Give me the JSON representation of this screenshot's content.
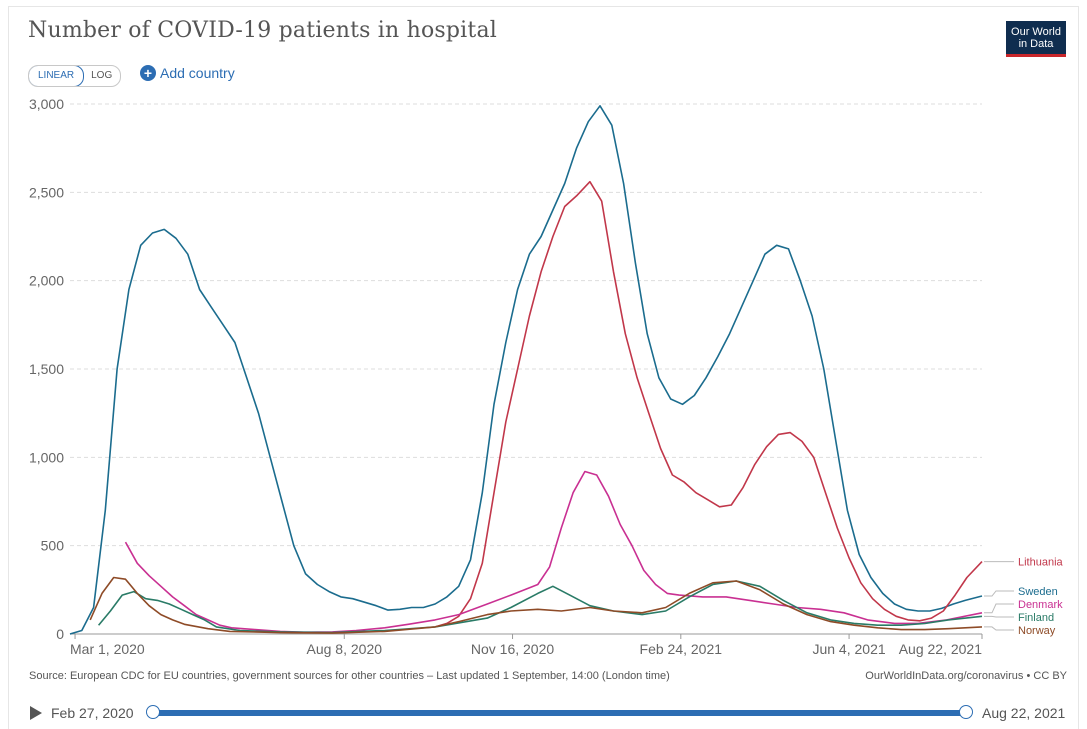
{
  "header": {
    "title": "Number of COVID-19 patients in hospital",
    "logo_line1": "Our World",
    "logo_line2": "in Data"
  },
  "controls": {
    "linear_label": "LINEAR",
    "log_label": "LOG",
    "add_country_label": "Add country",
    "add_icon": "plus-circle-icon"
  },
  "footer": {
    "source": "Source: European CDC for EU countries, government sources for other countries – Last updated 1 September, 14:00 (London time)",
    "credit": "OurWorldInData.org/coronavirus • CC BY"
  },
  "timeline": {
    "start_label": "Feb 27, 2020",
    "end_label": "Aug 22, 2021",
    "play_icon": "play-icon"
  },
  "chart_data": {
    "type": "line",
    "title": "Number of COVID-19 patients in hospital",
    "x_axis": {
      "type": "date",
      "range": [
        "2020-02-27",
        "2021-08-22"
      ],
      "ticks": [
        {
          "date": "2020-03-01",
          "label": "Mar 1, 2020"
        },
        {
          "date": "2020-08-08",
          "label": "Aug 8, 2020"
        },
        {
          "date": "2020-11-16",
          "label": "Nov 16, 2020"
        },
        {
          "date": "2021-02-24",
          "label": "Feb 24, 2021"
        },
        {
          "date": "2021-06-04",
          "label": "Jun 4, 2021"
        },
        {
          "date": "2021-08-22",
          "label": "Aug 22, 2021"
        }
      ]
    },
    "y_axis": {
      "range": [
        0,
        3000
      ],
      "ticks": [
        {
          "value": 0,
          "label": "0"
        },
        {
          "value": 500,
          "label": "500"
        },
        {
          "value": 1000,
          "label": "1,000"
        },
        {
          "value": 1500,
          "label": "1,500"
        },
        {
          "value": 2000,
          "label": "2,000"
        },
        {
          "value": 2500,
          "label": "2,500"
        },
        {
          "value": 3000,
          "label": "3,000"
        }
      ],
      "grid": true
    },
    "legend": "right-end-labels",
    "series": [
      {
        "name": "Sweden",
        "color": "#1b6c8e",
        "points": [
          [
            "2020-02-27",
            0
          ],
          [
            "2020-03-05",
            20
          ],
          [
            "2020-03-12",
            150
          ],
          [
            "2020-03-19",
            700
          ],
          [
            "2020-03-26",
            1500
          ],
          [
            "2020-04-02",
            1950
          ],
          [
            "2020-04-09",
            2200
          ],
          [
            "2020-04-16",
            2270
          ],
          [
            "2020-04-23",
            2290
          ],
          [
            "2020-04-30",
            2240
          ],
          [
            "2020-05-07",
            2150
          ],
          [
            "2020-05-14",
            1950
          ],
          [
            "2020-05-21",
            1850
          ],
          [
            "2020-05-28",
            1750
          ],
          [
            "2020-06-04",
            1650
          ],
          [
            "2020-06-11",
            1450
          ],
          [
            "2020-06-18",
            1250
          ],
          [
            "2020-06-25",
            1000
          ],
          [
            "2020-07-02",
            750
          ],
          [
            "2020-07-09",
            500
          ],
          [
            "2020-07-16",
            340
          ],
          [
            "2020-07-23",
            280
          ],
          [
            "2020-07-30",
            240
          ],
          [
            "2020-08-06",
            210
          ],
          [
            "2020-08-13",
            200
          ],
          [
            "2020-08-20",
            180
          ],
          [
            "2020-08-27",
            160
          ],
          [
            "2020-09-03",
            135
          ],
          [
            "2020-09-10",
            140
          ],
          [
            "2020-09-17",
            150
          ],
          [
            "2020-09-24",
            150
          ],
          [
            "2020-10-01",
            170
          ],
          [
            "2020-10-08",
            210
          ],
          [
            "2020-10-15",
            270
          ],
          [
            "2020-10-22",
            420
          ],
          [
            "2020-10-29",
            800
          ],
          [
            "2020-11-05",
            1300
          ],
          [
            "2020-11-12",
            1650
          ],
          [
            "2020-11-19",
            1950
          ],
          [
            "2020-11-26",
            2150
          ],
          [
            "2020-12-03",
            2250
          ],
          [
            "2020-12-10",
            2400
          ],
          [
            "2020-12-17",
            2550
          ],
          [
            "2020-12-24",
            2750
          ],
          [
            "2020-12-31",
            2900
          ],
          [
            "2021-01-07",
            2990
          ],
          [
            "2021-01-14",
            2880
          ],
          [
            "2021-01-21",
            2550
          ],
          [
            "2021-01-28",
            2100
          ],
          [
            "2021-02-04",
            1700
          ],
          [
            "2021-02-11",
            1450
          ],
          [
            "2021-02-18",
            1330
          ],
          [
            "2021-02-25",
            1300
          ],
          [
            "2021-03-04",
            1350
          ],
          [
            "2021-03-11",
            1450
          ],
          [
            "2021-03-18",
            1570
          ],
          [
            "2021-03-25",
            1700
          ],
          [
            "2021-04-01",
            1850
          ],
          [
            "2021-04-08",
            2000
          ],
          [
            "2021-04-15",
            2150
          ],
          [
            "2021-04-22",
            2200
          ],
          [
            "2021-04-29",
            2180
          ],
          [
            "2021-05-06",
            2000
          ],
          [
            "2021-05-13",
            1800
          ],
          [
            "2021-05-20",
            1500
          ],
          [
            "2021-05-27",
            1100
          ],
          [
            "2021-06-03",
            700
          ],
          [
            "2021-06-10",
            450
          ],
          [
            "2021-06-17",
            320
          ],
          [
            "2021-06-24",
            230
          ],
          [
            "2021-07-01",
            170
          ],
          [
            "2021-07-08",
            140
          ],
          [
            "2021-07-15",
            130
          ],
          [
            "2021-07-22",
            130
          ],
          [
            "2021-07-29",
            145
          ],
          [
            "2021-08-05",
            170
          ],
          [
            "2021-08-12",
            190
          ],
          [
            "2021-08-22",
            215
          ]
        ]
      },
      {
        "name": "Lithuania",
        "color": "#c1374a",
        "points": [
          [
            "2020-10-01",
            40
          ],
          [
            "2020-10-08",
            60
          ],
          [
            "2020-10-15",
            100
          ],
          [
            "2020-10-22",
            200
          ],
          [
            "2020-10-29",
            400
          ],
          [
            "2020-11-05",
            800
          ],
          [
            "2020-11-12",
            1200
          ],
          [
            "2020-11-19",
            1500
          ],
          [
            "2020-11-26",
            1800
          ],
          [
            "2020-12-03",
            2050
          ],
          [
            "2020-12-10",
            2250
          ],
          [
            "2020-12-17",
            2420
          ],
          [
            "2020-12-24",
            2480
          ],
          [
            "2021-01-01",
            2560
          ],
          [
            "2021-01-08",
            2450
          ],
          [
            "2021-01-15",
            2050
          ],
          [
            "2021-01-22",
            1700
          ],
          [
            "2021-01-29",
            1450
          ],
          [
            "2021-02-05",
            1250
          ],
          [
            "2021-02-12",
            1050
          ],
          [
            "2021-02-19",
            900
          ],
          [
            "2021-02-26",
            860
          ],
          [
            "2021-03-05",
            800
          ],
          [
            "2021-03-12",
            760
          ],
          [
            "2021-03-19",
            720
          ],
          [
            "2021-03-26",
            730
          ],
          [
            "2021-04-02",
            830
          ],
          [
            "2021-04-09",
            960
          ],
          [
            "2021-04-16",
            1060
          ],
          [
            "2021-04-23",
            1130
          ],
          [
            "2021-04-30",
            1140
          ],
          [
            "2021-05-07",
            1090
          ],
          [
            "2021-05-14",
            1000
          ],
          [
            "2021-05-21",
            800
          ],
          [
            "2021-05-28",
            600
          ],
          [
            "2021-06-04",
            430
          ],
          [
            "2021-06-11",
            290
          ],
          [
            "2021-06-18",
            200
          ],
          [
            "2021-06-25",
            140
          ],
          [
            "2021-07-02",
            100
          ],
          [
            "2021-07-09",
            80
          ],
          [
            "2021-07-16",
            75
          ],
          [
            "2021-07-23",
            90
          ],
          [
            "2021-07-30",
            130
          ],
          [
            "2021-08-06",
            220
          ],
          [
            "2021-08-13",
            320
          ],
          [
            "2021-08-22",
            410
          ]
        ]
      },
      {
        "name": "Denmark",
        "color": "#c93092",
        "points": [
          [
            "2020-03-31",
            520
          ],
          [
            "2020-04-07",
            400
          ],
          [
            "2020-04-14",
            330
          ],
          [
            "2020-04-21",
            270
          ],
          [
            "2020-04-28",
            210
          ],
          [
            "2020-05-05",
            160
          ],
          [
            "2020-05-12",
            110
          ],
          [
            "2020-05-19",
            80
          ],
          [
            "2020-05-26",
            50
          ],
          [
            "2020-06-02",
            35
          ],
          [
            "2020-06-16",
            25
          ],
          [
            "2020-07-01",
            15
          ],
          [
            "2020-07-15",
            10
          ],
          [
            "2020-08-01",
            12
          ],
          [
            "2020-08-15",
            20
          ],
          [
            "2020-09-01",
            35
          ],
          [
            "2020-09-15",
            55
          ],
          [
            "2020-10-01",
            80
          ],
          [
            "2020-10-15",
            110
          ],
          [
            "2020-11-01",
            170
          ],
          [
            "2020-11-15",
            220
          ],
          [
            "2020-12-01",
            280
          ],
          [
            "2020-12-08",
            380
          ],
          [
            "2020-12-15",
            600
          ],
          [
            "2020-12-22",
            800
          ],
          [
            "2020-12-29",
            920
          ],
          [
            "2021-01-05",
            900
          ],
          [
            "2021-01-12",
            780
          ],
          [
            "2021-01-19",
            620
          ],
          [
            "2021-01-26",
            500
          ],
          [
            "2021-02-02",
            360
          ],
          [
            "2021-02-09",
            280
          ],
          [
            "2021-02-16",
            230
          ],
          [
            "2021-02-23",
            220
          ],
          [
            "2021-03-09",
            210
          ],
          [
            "2021-03-23",
            210
          ],
          [
            "2021-04-06",
            190
          ],
          [
            "2021-04-20",
            170
          ],
          [
            "2021-05-04",
            150
          ],
          [
            "2021-05-18",
            140
          ],
          [
            "2021-06-01",
            120
          ],
          [
            "2021-06-15",
            80
          ],
          [
            "2021-07-01",
            60
          ],
          [
            "2021-07-15",
            60
          ],
          [
            "2021-08-01",
            80
          ],
          [
            "2021-08-22",
            120
          ]
        ]
      },
      {
        "name": "Finland",
        "color": "#2a7b67",
        "points": [
          [
            "2020-03-15",
            50
          ],
          [
            "2020-03-22",
            130
          ],
          [
            "2020-03-29",
            220
          ],
          [
            "2020-04-05",
            240
          ],
          [
            "2020-04-12",
            200
          ],
          [
            "2020-04-19",
            190
          ],
          [
            "2020-04-26",
            170
          ],
          [
            "2020-05-03",
            140
          ],
          [
            "2020-05-10",
            110
          ],
          [
            "2020-05-17",
            80
          ],
          [
            "2020-05-24",
            40
          ],
          [
            "2020-06-07",
            20
          ],
          [
            "2020-07-01",
            12
          ],
          [
            "2020-08-01",
            8
          ],
          [
            "2020-09-01",
            20
          ],
          [
            "2020-10-01",
            40
          ],
          [
            "2020-11-01",
            90
          ],
          [
            "2020-11-15",
            150
          ],
          [
            "2020-12-01",
            230
          ],
          [
            "2020-12-10",
            270
          ],
          [
            "2020-12-20",
            220
          ],
          [
            "2021-01-01",
            160
          ],
          [
            "2021-01-15",
            130
          ],
          [
            "2021-02-01",
            110
          ],
          [
            "2021-02-15",
            130
          ],
          [
            "2021-03-01",
            210
          ],
          [
            "2021-03-15",
            280
          ],
          [
            "2021-03-29",
            300
          ],
          [
            "2021-04-12",
            270
          ],
          [
            "2021-04-26",
            190
          ],
          [
            "2021-05-10",
            120
          ],
          [
            "2021-05-24",
            80
          ],
          [
            "2021-06-07",
            60
          ],
          [
            "2021-06-21",
            50
          ],
          [
            "2021-07-05",
            50
          ],
          [
            "2021-07-19",
            60
          ],
          [
            "2021-08-02",
            80
          ],
          [
            "2021-08-22",
            100
          ]
        ]
      },
      {
        "name": "Norway",
        "color": "#8e4b27",
        "points": [
          [
            "2020-03-10",
            80
          ],
          [
            "2020-03-17",
            230
          ],
          [
            "2020-03-24",
            320
          ],
          [
            "2020-03-31",
            310
          ],
          [
            "2020-04-07",
            230
          ],
          [
            "2020-04-14",
            160
          ],
          [
            "2020-04-21",
            110
          ],
          [
            "2020-04-28",
            80
          ],
          [
            "2020-05-05",
            55
          ],
          [
            "2020-05-19",
            30
          ],
          [
            "2020-06-01",
            15
          ],
          [
            "2020-07-01",
            8
          ],
          [
            "2020-08-01",
            5
          ],
          [
            "2020-09-01",
            15
          ],
          [
            "2020-10-01",
            40
          ],
          [
            "2020-10-15",
            70
          ],
          [
            "2020-11-01",
            110
          ],
          [
            "2020-11-15",
            130
          ],
          [
            "2020-12-01",
            140
          ],
          [
            "2020-12-15",
            130
          ],
          [
            "2021-01-01",
            150
          ],
          [
            "2021-01-15",
            130
          ],
          [
            "2021-02-01",
            120
          ],
          [
            "2021-02-15",
            150
          ],
          [
            "2021-03-01",
            230
          ],
          [
            "2021-03-15",
            290
          ],
          [
            "2021-03-29",
            300
          ],
          [
            "2021-04-12",
            250
          ],
          [
            "2021-04-26",
            170
          ],
          [
            "2021-05-10",
            110
          ],
          [
            "2021-05-24",
            70
          ],
          [
            "2021-06-07",
            50
          ],
          [
            "2021-06-21",
            35
          ],
          [
            "2021-07-05",
            25
          ],
          [
            "2021-07-19",
            25
          ],
          [
            "2021-08-02",
            30
          ],
          [
            "2021-08-22",
            40
          ]
        ]
      }
    ]
  }
}
